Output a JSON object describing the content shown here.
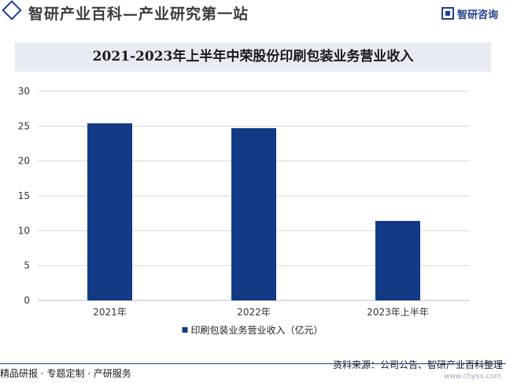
{
  "header": {
    "title": "智研产业百科—产业研究第一站",
    "logo_text": "智研咨询"
  },
  "colors": {
    "bar": "#123a85",
    "accent": "#1f3f8f",
    "title_band": "#e8ebf2",
    "grid": "#d9d9d9"
  },
  "chart_data": {
    "type": "bar",
    "title": "2021-2023年上半年中荣股份印刷包装业务营业收入",
    "categories": [
      "2021年",
      "2022年",
      "2023年上半年"
    ],
    "series": [
      {
        "name": "印刷包装业务营业收入（亿元）",
        "values": [
          25.4,
          24.7,
          11.4
        ]
      }
    ],
    "ylim": [
      0,
      30
    ],
    "yticks": [
      0,
      5,
      10,
      15,
      20,
      25,
      30
    ],
    "grid": true,
    "legend_position": "bottom-center"
  },
  "footer": {
    "left": "精品研报 · 专题定制 · 产研服务",
    "source": "资料来源：公司公告、智研产业百科整理",
    "url": "www.chyxx.com"
  }
}
